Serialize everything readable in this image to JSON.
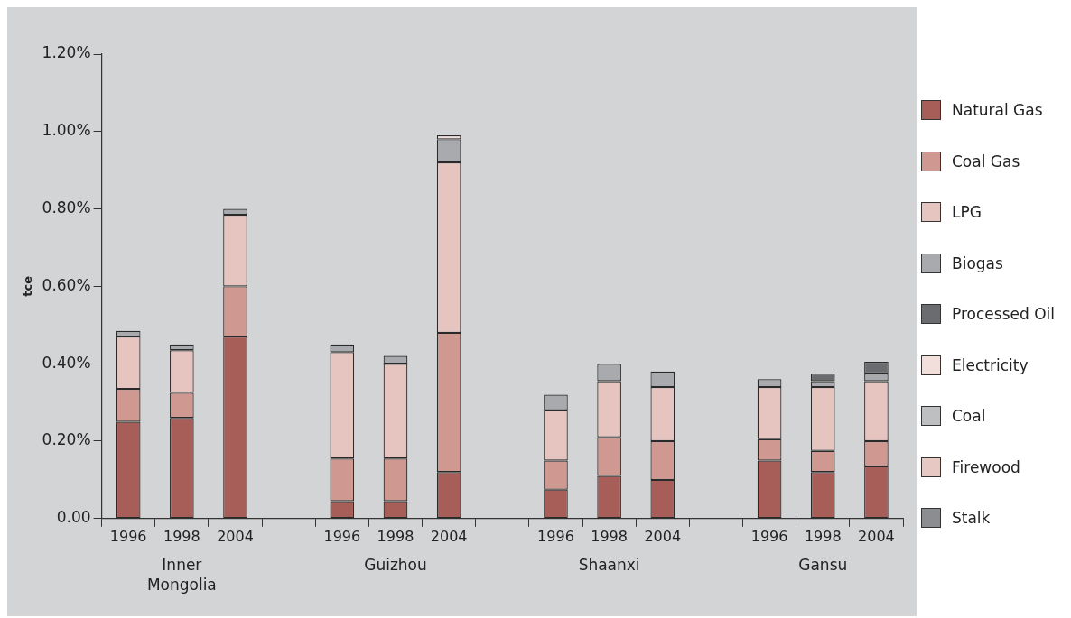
{
  "chart_data": {
    "type": "bar",
    "stacked": true,
    "ylabel": "tce",
    "categories": [
      "1996",
      "1998",
      "2004",
      null,
      "1996",
      "1998",
      "2004",
      null,
      "1996",
      "1998",
      "2004",
      null,
      "1996",
      "1998",
      "2004"
    ],
    "series": [
      {
        "name": "Natural Gas",
        "color": "#a85e58",
        "values": [
          0.25,
          0.26,
          0.47,
          null,
          0.045,
          0.045,
          0.12,
          null,
          0.075,
          0.11,
          0.1,
          null,
          0.15,
          0.12,
          0.135
        ]
      },
      {
        "name": "Coal Gas",
        "color": "#cf9890",
        "values": [
          0.085,
          0.065,
          0.13,
          null,
          0.11,
          0.11,
          0.36,
          null,
          0.075,
          0.1,
          0.1,
          null,
          0.055,
          0.055,
          0.065
        ]
      },
      {
        "name": "LPG",
        "color": "#e6c5c0",
        "values": [
          0.135,
          0.11,
          0.185,
          null,
          0.275,
          0.245,
          0.44,
          null,
          0.13,
          0.145,
          0.14,
          null,
          0.135,
          0.165,
          0.155
        ]
      },
      {
        "name": "Biogas",
        "color": "#a9aaad",
        "values": [
          0.015,
          0.015,
          0.015,
          null,
          0.02,
          0.02,
          0.06,
          null,
          0.04,
          0.045,
          0.04,
          null,
          0.02,
          0.015,
          0.02
        ]
      },
      {
        "name": "Processed Oil",
        "color": "#6b6c70",
        "values": [
          null,
          null,
          null,
          null,
          null,
          null,
          null,
          null,
          null,
          null,
          null,
          null,
          null,
          0.02,
          0.03
        ]
      },
      {
        "name": "Electricity",
        "color": "#f2dedb",
        "values": [
          null,
          null,
          null,
          null,
          null,
          null,
          0.01,
          null,
          null,
          null,
          null,
          null,
          null,
          null,
          null
        ]
      },
      {
        "name": "Coal",
        "color": "#bebfc1",
        "values": [
          null,
          null,
          null,
          null,
          null,
          null,
          null,
          null,
          null,
          null,
          null,
          null,
          null,
          null,
          null
        ]
      },
      {
        "name": "Firewood",
        "color": "#e8c8c2",
        "values": [
          null,
          null,
          null,
          null,
          null,
          null,
          null,
          null,
          null,
          null,
          null,
          null,
          null,
          null,
          null
        ]
      },
      {
        "name": "Stalk",
        "color": "#8c8d90",
        "values": [
          null,
          null,
          null,
          null,
          null,
          null,
          null,
          null,
          null,
          null,
          null,
          null,
          null,
          null,
          null
        ]
      }
    ],
    "ylim": [
      0,
      1.2
    ],
    "yticks": [
      {
        "value": 0,
        "label": "0.00"
      },
      {
        "value": 0.2,
        "label": "0.20%"
      },
      {
        "value": 0.4,
        "label": "0.40%"
      },
      {
        "value": 0.6,
        "label": "0.60%"
      },
      {
        "value": 0.8,
        "label": "0.80%"
      },
      {
        "value": 1.0,
        "label": "1.00%"
      },
      {
        "value": 1.2,
        "label": "1.20%"
      }
    ],
    "grid": false,
    "legend": "right",
    "annotations": [
      "Inner Mongolia",
      "Guizhou",
      "Shaanxi",
      "Gansu"
    ]
  }
}
